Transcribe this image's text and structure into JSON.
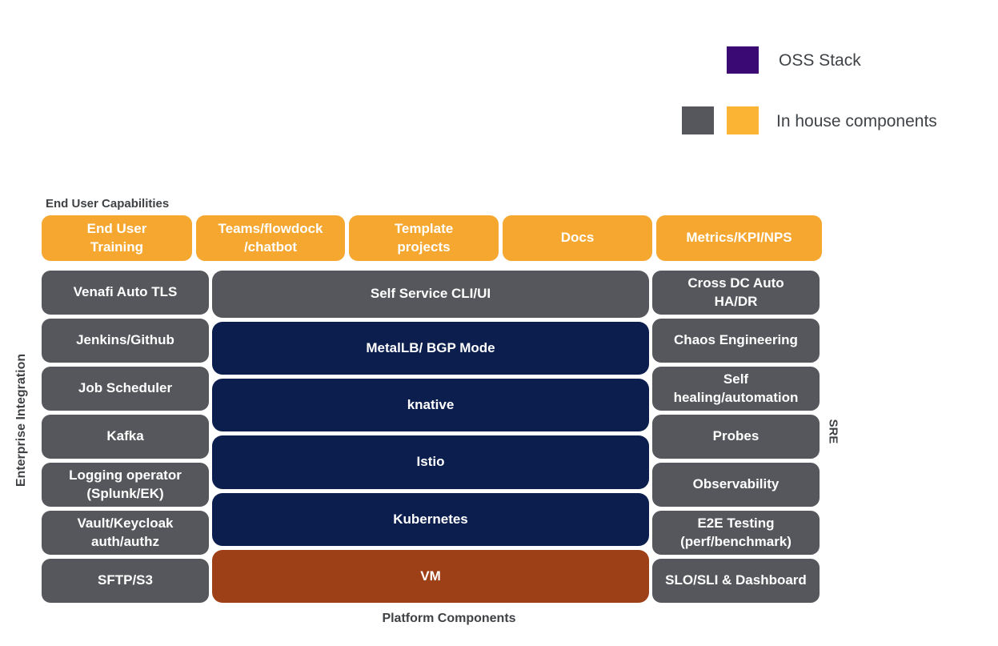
{
  "legend": {
    "oss_label": "OSS Stack",
    "inhouse_label": "In house components",
    "oss_swatch_color": "#3A0973",
    "gray_swatch_color": "#55575C",
    "orange_swatch_color": "#FBB433"
  },
  "labels": {
    "end_user_capabilities": "End User Capabilities",
    "enterprise_integration": "Enterprise Integration",
    "sre": "SRE",
    "platform_components": "Platform Components"
  },
  "colors": {
    "capability_box": "#F5A72F",
    "inhouse_box": "#55575C",
    "oss_box": "#0C1E4E",
    "vm_box": "#9E4017",
    "heading_text": "#3F4245",
    "box_text": "#FFFFFF"
  },
  "top_row": [
    "End User\nTraining",
    "Teams/flowdock\n/chatbot",
    "Template\nprojects",
    "Docs",
    "Metrics/KPI/NPS"
  ],
  "left_column": [
    "Venafi Auto TLS",
    "Jenkins/Github",
    "Job Scheduler",
    "Kafka",
    "Logging operator\n(Splunk/EK)",
    "Vault/Keycloak\nauth/authz",
    "SFTP/S3"
  ],
  "middle_column": [
    {
      "label": "Self Service CLI/UI",
      "type": "inhouse"
    },
    {
      "label": "MetalLB/ BGP Mode",
      "type": "oss"
    },
    {
      "label": "knative",
      "type": "oss"
    },
    {
      "label": "Istio",
      "type": "oss"
    },
    {
      "label": "Kubernetes",
      "type": "oss"
    },
    {
      "label": "VM",
      "type": "vm"
    }
  ],
  "right_column": [
    "Cross DC Auto\nHA/DR",
    "Chaos Engineering",
    "Self\nhealing/automation",
    "Probes",
    "Observability",
    "E2E Testing\n(perf/benchmark)",
    "SLO/SLI & Dashboard"
  ]
}
